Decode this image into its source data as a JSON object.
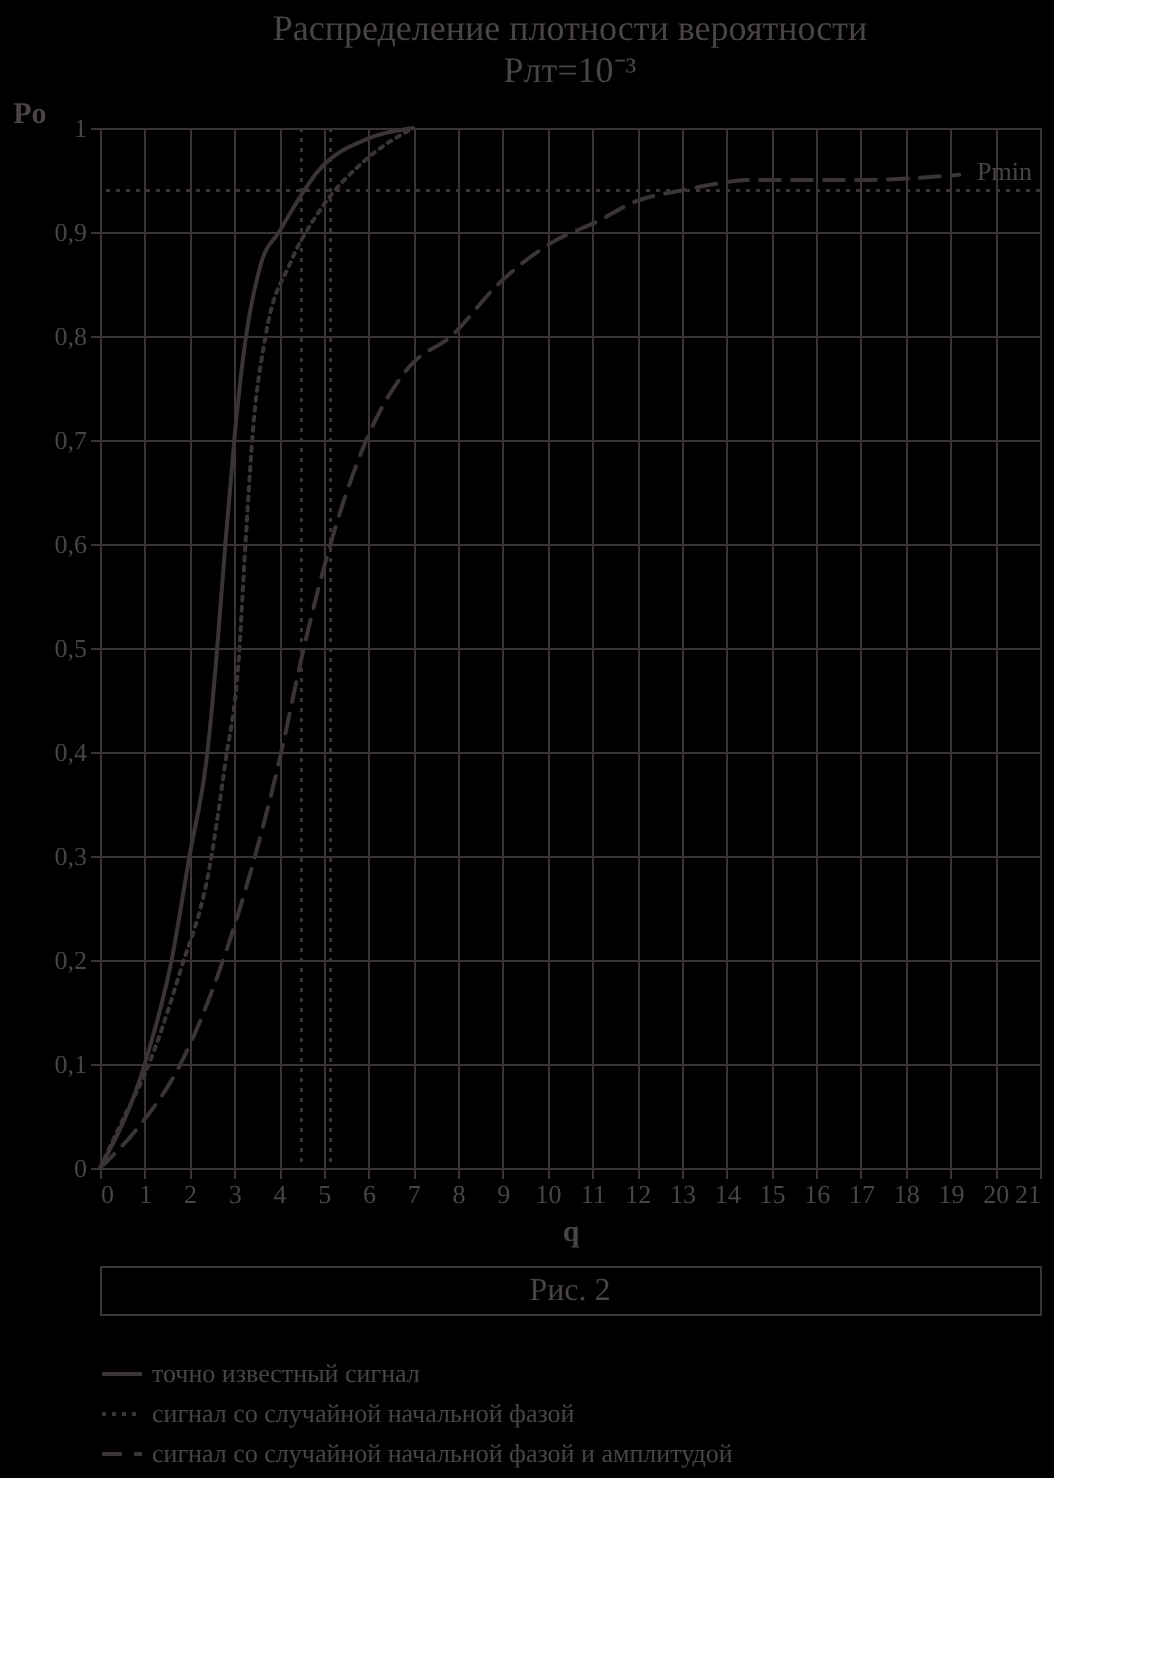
{
  "chart_data": {
    "type": "line",
    "title": "Распределение плотности вероятности",
    "subtitle": "Pлт=10⁻³",
    "xlabel": "q",
    "ylabel": "Pо",
    "xlim": [
      0,
      21
    ],
    "xticks": [
      0,
      1,
      2,
      3,
      4,
      5,
      6,
      7,
      8,
      9,
      10,
      11,
      12,
      13,
      14,
      15,
      16,
      17,
      18,
      19,
      20,
      21
    ],
    "ylim": [
      0,
      1
    ],
    "yticks": [
      0,
      {
        "value": 0.1,
        "label": "0,1"
      },
      {
        "value": 0.2,
        "label": "0,2"
      },
      {
        "value": 0.3,
        "label": "0,3"
      },
      {
        "value": 0.4,
        "label": "0,4"
      },
      {
        "value": 0.5,
        "label": "0,5"
      },
      {
        "value": 0.6,
        "label": "0,6"
      },
      {
        "value": 0.7,
        "label": "0,7"
      },
      {
        "value": 0.8,
        "label": "0,8"
      },
      {
        "value": 0.9,
        "label": "0,9"
      },
      1
    ],
    "grid": true,
    "legend": "bottom",
    "series": [
      {
        "name": "точно известный сигнал",
        "color": "#3a3434",
        "line_style": "solid",
        "x": [
          0,
          1,
          1.6,
          2,
          2.4,
          2.6,
          2.8,
          3.0,
          3.2,
          3.6,
          4,
          4.9,
          6,
          7
        ],
        "values": [
          0,
          0.1,
          0.2,
          0.3,
          0.4,
          0.49,
          0.6,
          0.7,
          0.78,
          0.87,
          0.9,
          0.96,
          0.99,
          1.0
        ]
      },
      {
        "name": "сигнал со случайной начальной фазой",
        "color": "#3a3434",
        "line_style": "dotted",
        "x": [
          0,
          0.55,
          1,
          1.8,
          2.45,
          2.8,
          3.1,
          3.25,
          3.4,
          3.7,
          4.25,
          4.9,
          5.95,
          7
        ],
        "values": [
          0,
          0.05,
          0.09,
          0.19,
          0.29,
          0.39,
          0.49,
          0.6,
          0.7,
          0.8,
          0.87,
          0.92,
          0.97,
          1.0
        ]
      },
      {
        "name": "сигнал со случайной начальной фазой и амплитудой",
        "color": "#3a3434",
        "line_style": "dashed",
        "x": [
          0,
          0.87,
          1.8,
          2.67,
          3.4,
          4.05,
          4.5,
          5.15,
          5.95,
          6.9,
          7.85,
          8.9,
          10.1,
          11.1,
          12,
          13,
          14.6,
          17,
          19.2
        ],
        "values": [
          0,
          0.04,
          0.1,
          0.19,
          0.29,
          0.4,
          0.49,
          0.6,
          0.7,
          0.77,
          0.8,
          0.85,
          0.89,
          0.91,
          0.93,
          0.94,
          0.95,
          0.95,
          0.955
        ]
      }
    ],
    "ref_lines": [
      {
        "axis": "y",
        "value": 0.94,
        "label": "Pmin",
        "line_style": "dotted",
        "color": "#3a3434"
      },
      {
        "axis": "x",
        "value": 4.5,
        "label": null,
        "line_style": "dotted",
        "color": "#3a3434"
      },
      {
        "axis": "x",
        "value": 5.15,
        "label": null,
        "line_style": "dotted",
        "color": "#3a3434"
      }
    ],
    "annotations": [
      "Рис. 2"
    ]
  }
}
